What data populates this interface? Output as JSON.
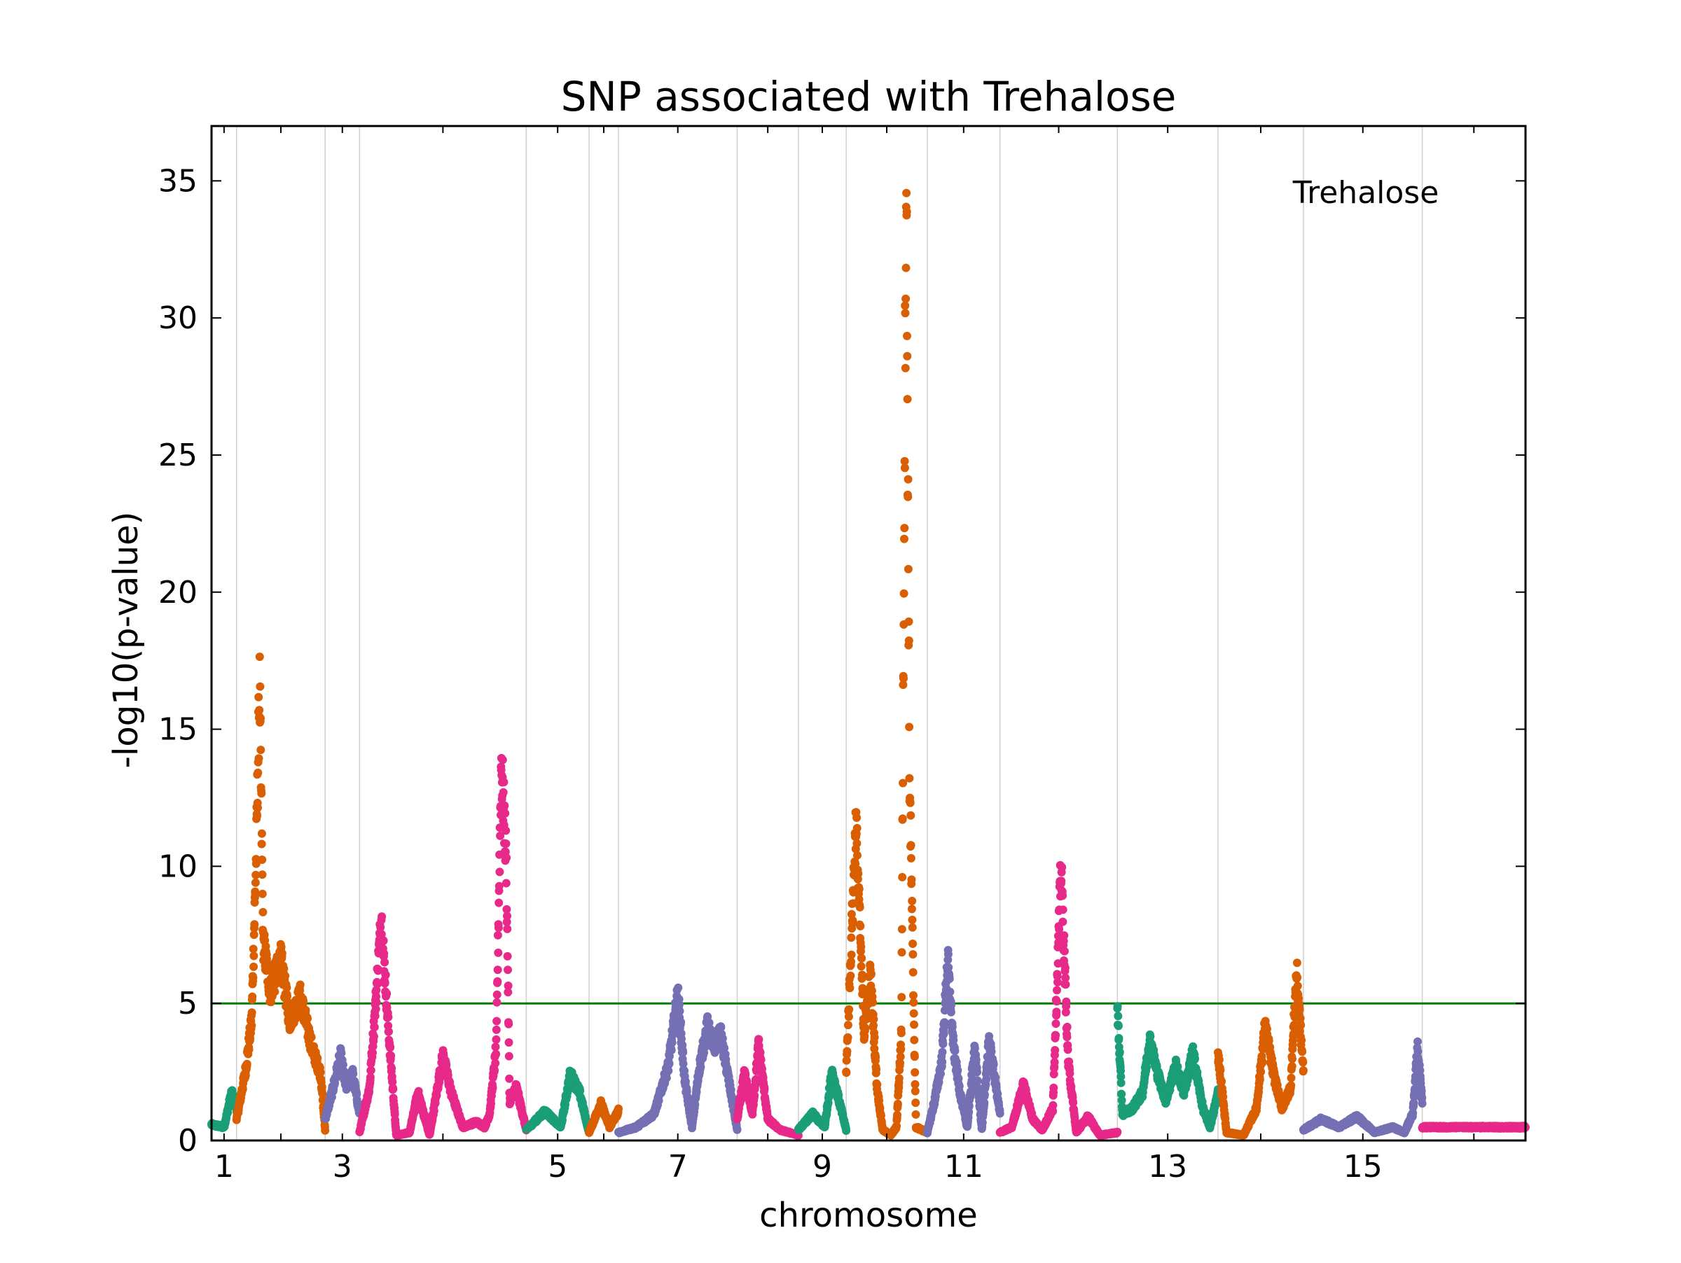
{
  "chart_data": {
    "type": "scatter",
    "title": "SNP associated with Trehalose",
    "xlabel": "chromosome",
    "ylabel": "-log10(p-value)",
    "annotation": "Trehalose",
    "ylim": [
      0,
      37
    ],
    "yticks": [
      0,
      5,
      10,
      15,
      20,
      25,
      30,
      35
    ],
    "threshold": 5,
    "threshold_color": "#008000",
    "grid": "vertical lines at chromosome boundaries",
    "palette": [
      "#1b9e77",
      "#d95f02",
      "#7570b3",
      "#e7298a"
    ],
    "chromosomes": [
      {
        "name": "1",
        "label": "1",
        "length": 230,
        "color": "#1b9e77",
        "profile": [
          [
            0,
            0.6
          ],
          [
            0.5,
            0.5
          ],
          [
            0.8,
            1.8
          ],
          [
            1.0,
            1.2
          ]
        ]
      },
      {
        "name": "2",
        "label": "",
        "length": 813,
        "color": "#d95f02",
        "profile": [
          [
            0,
            0.8
          ],
          [
            0.1,
            2.6
          ],
          [
            0.17,
            4.5
          ],
          [
            0.22,
            10.5
          ],
          [
            0.26,
            17.2
          ],
          [
            0.3,
            7.5
          ],
          [
            0.38,
            5.6
          ],
          [
            0.5,
            6.8
          ],
          [
            0.6,
            4.5
          ],
          [
            0.72,
            5.4
          ],
          [
            0.85,
            3.5
          ],
          [
            0.95,
            2.5
          ],
          [
            1.0,
            0.4
          ]
        ]
      },
      {
        "name": "3",
        "label": "3",
        "length": 316,
        "color": "#7570b3",
        "profile": [
          [
            0,
            0.8
          ],
          [
            0.2,
            1.8
          ],
          [
            0.45,
            3.2
          ],
          [
            0.6,
            2.0
          ],
          [
            0.8,
            2.5
          ],
          [
            1.0,
            1.0
          ]
        ]
      },
      {
        "name": "4",
        "label": "",
        "length": 1531,
        "color": "#e7298a",
        "profile": [
          [
            0,
            0.3
          ],
          [
            0.06,
            2.0
          ],
          [
            0.1,
            5.5
          ],
          [
            0.13,
            8.4
          ],
          [
            0.17,
            4.5
          ],
          [
            0.22,
            0.2
          ],
          [
            0.3,
            0.3
          ],
          [
            0.35,
            1.8
          ],
          [
            0.42,
            0.2
          ],
          [
            0.5,
            3.2
          ],
          [
            0.55,
            1.8
          ],
          [
            0.62,
            0.5
          ],
          [
            0.7,
            0.7
          ],
          [
            0.75,
            0.5
          ],
          [
            0.78,
            1.0
          ],
          [
            0.82,
            3.5
          ],
          [
            0.85,
            14.3
          ],
          [
            0.88,
            10.5
          ],
          [
            0.9,
            1.5
          ],
          [
            0.94,
            2.0
          ],
          [
            1.0,
            0.4
          ]
        ]
      },
      {
        "name": "5",
        "label": "5",
        "length": 576,
        "color": "#1b9e77",
        "profile": [
          [
            0,
            0.4
          ],
          [
            0.3,
            1.1
          ],
          [
            0.55,
            0.5
          ],
          [
            0.7,
            2.5
          ],
          [
            0.85,
            1.8
          ],
          [
            1.0,
            0.3
          ]
        ]
      },
      {
        "name": "6",
        "label": "",
        "length": 270,
        "color": "#d95f02",
        "profile": [
          [
            0,
            0.3
          ],
          [
            0.4,
            1.4
          ],
          [
            0.7,
            0.5
          ],
          [
            1.0,
            1.1
          ]
        ]
      },
      {
        "name": "7",
        "label": "7",
        "length": 1090,
        "color": "#7570b3",
        "profile": [
          [
            0,
            0.3
          ],
          [
            0.15,
            0.5
          ],
          [
            0.3,
            1.0
          ],
          [
            0.42,
            2.8
          ],
          [
            0.5,
            5.5
          ],
          [
            0.56,
            2.2
          ],
          [
            0.62,
            0.5
          ],
          [
            0.68,
            2.7
          ],
          [
            0.75,
            4.3
          ],
          [
            0.8,
            3.5
          ],
          [
            0.86,
            4.0
          ],
          [
            0.92,
            2.5
          ],
          [
            1.0,
            0.4
          ]
        ]
      },
      {
        "name": "8",
        "label": "",
        "length": 562,
        "color": "#e7298a",
        "profile": [
          [
            0,
            0.8
          ],
          [
            0.12,
            2.5
          ],
          [
            0.25,
            1.0
          ],
          [
            0.35,
            3.6
          ],
          [
            0.5,
            0.8
          ],
          [
            0.7,
            0.4
          ],
          [
            1.0,
            0.2
          ]
        ]
      },
      {
        "name": "9",
        "label": "9",
        "length": 439,
        "color": "#1b9e77",
        "profile": [
          [
            0,
            0.4
          ],
          [
            0.3,
            1.0
          ],
          [
            0.55,
            0.5
          ],
          [
            0.7,
            2.6
          ],
          [
            0.85,
            1.5
          ],
          [
            1.0,
            0.4
          ]
        ]
      },
      {
        "name": "10",
        "label": "",
        "length": 745,
        "color": "#d95f02",
        "profile": [
          [
            0,
            2.5
          ],
          [
            0.12,
            12.0
          ],
          [
            0.22,
            4.0
          ],
          [
            0.3,
            6.3
          ],
          [
            0.38,
            2.0
          ],
          [
            0.45,
            0.4
          ],
          [
            0.55,
            0.2
          ],
          [
            0.62,
            0.5
          ],
          [
            0.68,
            4.0
          ],
          [
            0.74,
            36.8
          ],
          [
            0.78,
            14.0
          ],
          [
            0.82,
            7.0
          ],
          [
            0.86,
            0.5
          ],
          [
            1.0,
            0.3
          ]
        ]
      },
      {
        "name": "11",
        "label": "11",
        "length": 667,
        "color": "#7570b3",
        "profile": [
          [
            0,
            0.3
          ],
          [
            0.1,
            1.5
          ],
          [
            0.2,
            3.0
          ],
          [
            0.28,
            6.8
          ],
          [
            0.36,
            3.5
          ],
          [
            0.45,
            1.8
          ],
          [
            0.55,
            0.5
          ],
          [
            0.65,
            3.5
          ],
          [
            0.75,
            0.4
          ],
          [
            0.85,
            3.8
          ],
          [
            1.0,
            1.0
          ]
        ]
      },
      {
        "name": "12",
        "label": "",
        "length": 1078,
        "color": "#e7298a",
        "profile": [
          [
            0,
            0.3
          ],
          [
            0.1,
            0.5
          ],
          [
            0.2,
            2.1
          ],
          [
            0.28,
            0.8
          ],
          [
            0.36,
            0.4
          ],
          [
            0.45,
            1.2
          ],
          [
            0.52,
            10.4
          ],
          [
            0.58,
            3.0
          ],
          [
            0.65,
            0.3
          ],
          [
            0.75,
            0.9
          ],
          [
            0.85,
            0.2
          ],
          [
            1.0,
            0.3
          ]
        ]
      },
      {
        "name": "13",
        "label": "13",
        "length": 924,
        "color": "#1b9e77",
        "profile": [
          [
            0,
            5.0
          ],
          [
            0.05,
            1.0
          ],
          [
            0.15,
            1.2
          ],
          [
            0.25,
            1.8
          ],
          [
            0.32,
            3.8
          ],
          [
            0.4,
            2.5
          ],
          [
            0.48,
            1.5
          ],
          [
            0.58,
            2.8
          ],
          [
            0.66,
            1.8
          ],
          [
            0.75,
            3.3
          ],
          [
            0.85,
            1.2
          ],
          [
            0.92,
            0.5
          ],
          [
            1.0,
            1.8
          ]
        ]
      },
      {
        "name": "14",
        "label": "",
        "length": 784,
        "color": "#d95f02",
        "profile": [
          [
            0,
            3.3
          ],
          [
            0.1,
            0.3
          ],
          [
            0.3,
            0.2
          ],
          [
            0.45,
            1.2
          ],
          [
            0.55,
            4.3
          ],
          [
            0.65,
            2.5
          ],
          [
            0.75,
            1.2
          ],
          [
            0.85,
            2.0
          ],
          [
            0.92,
            6.4
          ],
          [
            1.0,
            2.5
          ]
        ]
      },
      {
        "name": "15",
        "label": "15",
        "length": 1091,
        "color": "#7570b3",
        "profile": [
          [
            0,
            0.4
          ],
          [
            0.15,
            0.8
          ],
          [
            0.3,
            0.5
          ],
          [
            0.45,
            0.9
          ],
          [
            0.6,
            0.3
          ],
          [
            0.75,
            0.5
          ],
          [
            0.85,
            0.3
          ],
          [
            0.92,
            1.0
          ],
          [
            0.96,
            3.5
          ],
          [
            1.0,
            1.5
          ]
        ]
      },
      {
        "name": "16",
        "label": "",
        "length": 948,
        "color": "#e7298a",
        "profile": [
          [
            0,
            0.5
          ],
          [
            1.0,
            0.5
          ]
        ]
      }
    ]
  }
}
